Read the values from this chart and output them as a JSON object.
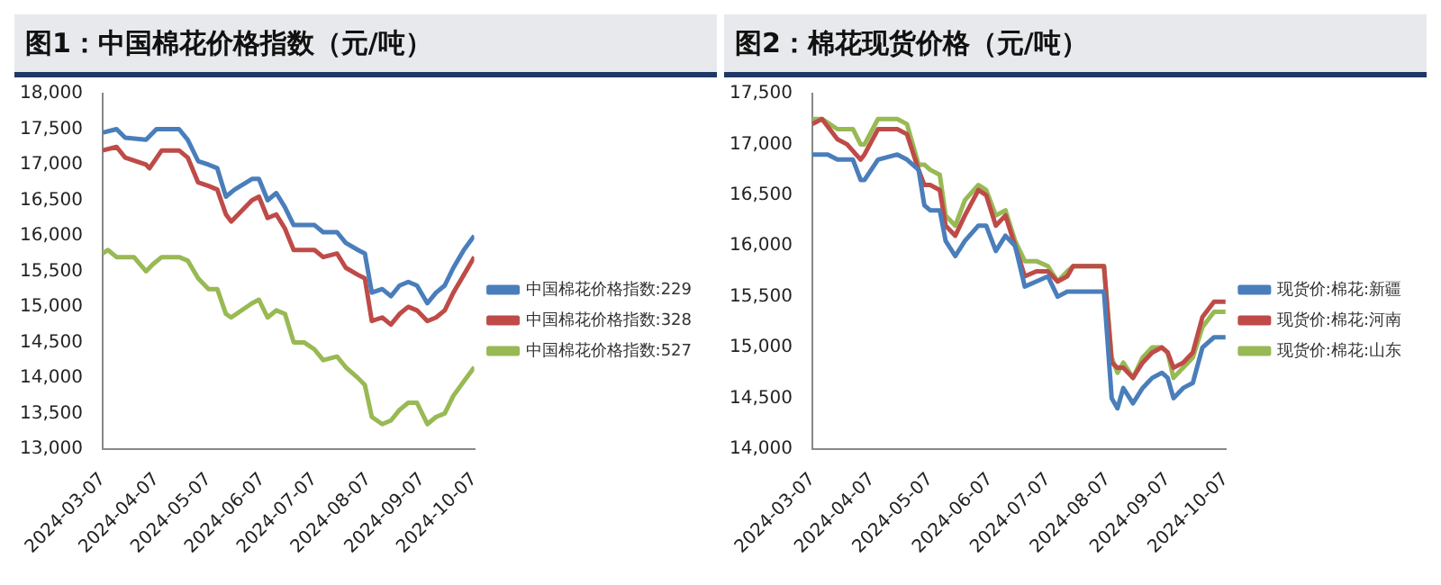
{
  "chart_data": [
    {
      "type": "line",
      "title": "图1：中国棉花价格指数（元/吨）",
      "legend": "right",
      "marker": "none",
      "xlim": [
        "2024-03-07",
        "2024-10-07"
      ],
      "xticks": [
        {
          "value": "2024-03-07",
          "label": "2024-03-07"
        },
        {
          "value": "2024-04-07",
          "label": "2024-04-07"
        },
        {
          "value": "2024-05-07",
          "label": "2024-05-07"
        },
        {
          "value": "2024-06-07",
          "label": "2024-06-07"
        },
        {
          "value": "2024-07-07",
          "label": "2024-07-07"
        },
        {
          "value": "2024-08-07",
          "label": "2024-08-07"
        },
        {
          "value": "2024-09-07",
          "label": "2024-09-07"
        },
        {
          "value": "2024-10-07",
          "label": "2024-10-07"
        }
      ],
      "ylim": [
        13000,
        18000
      ],
      "yticks": [
        {
          "value": 13000,
          "label": "13,000"
        },
        {
          "value": 13500,
          "label": "13,500"
        },
        {
          "value": 14000,
          "label": "14,000"
        },
        {
          "value": 14500,
          "label": "14,500"
        },
        {
          "value": 15000,
          "label": "15,000"
        },
        {
          "value": 15500,
          "label": "15,500"
        },
        {
          "value": 16000,
          "label": "16,000"
        },
        {
          "value": 16500,
          "label": "16,500"
        },
        {
          "value": 17000,
          "label": "17,000"
        },
        {
          "value": 17500,
          "label": "17,500"
        },
        {
          "value": 18000,
          "label": "18,000"
        }
      ],
      "series": [
        {
          "name": "中国棉花价格指数:229",
          "color": "#4a7ebb",
          "x": [
            "2024-03-07",
            "2024-03-15",
            "2024-03-20",
            "2024-04-01",
            "2024-04-07",
            "2024-04-20",
            "2024-04-25",
            "2024-05-01",
            "2024-05-07",
            "2024-05-12",
            "2024-05-17",
            "2024-05-22",
            "2024-06-01",
            "2024-06-05",
            "2024-06-10",
            "2024-06-15",
            "2024-06-20",
            "2024-06-25",
            "2024-07-01",
            "2024-07-07",
            "2024-07-12",
            "2024-07-20",
            "2024-07-25",
            "2024-08-01",
            "2024-08-05",
            "2024-08-09",
            "2024-08-15",
            "2024-08-20",
            "2024-08-25",
            "2024-08-30",
            "2024-09-04",
            "2024-09-10",
            "2024-09-15",
            "2024-09-20",
            "2024-09-25",
            "2024-10-01",
            "2024-10-07"
          ],
          "values": [
            17450,
            17500,
            17380,
            17350,
            17500,
            17500,
            17350,
            17050,
            17000,
            16950,
            16550,
            16650,
            16800,
            16800,
            16500,
            16600,
            16400,
            16150,
            16150,
            16150,
            16050,
            16050,
            15900,
            15800,
            15750,
            15200,
            15250,
            15150,
            15300,
            15350,
            15300,
            15050,
            15200,
            15300,
            15550,
            15800,
            16000
          ]
        },
        {
          "name": "中国棉花价格指数:328",
          "color": "#be4b48",
          "x": [
            "2024-03-07",
            "2024-03-15",
            "2024-03-20",
            "2024-04-01",
            "2024-04-03",
            "2024-04-10",
            "2024-04-20",
            "2024-04-25",
            "2024-05-01",
            "2024-05-07",
            "2024-05-12",
            "2024-05-17",
            "2024-05-20",
            "2024-06-01",
            "2024-06-05",
            "2024-06-10",
            "2024-06-15",
            "2024-06-20",
            "2024-06-25",
            "2024-07-01",
            "2024-07-07",
            "2024-07-12",
            "2024-07-20",
            "2024-07-25",
            "2024-08-01",
            "2024-08-05",
            "2024-08-09",
            "2024-08-15",
            "2024-08-20",
            "2024-08-25",
            "2024-08-30",
            "2024-09-04",
            "2024-09-10",
            "2024-09-15",
            "2024-09-20",
            "2024-09-25",
            "2024-10-01",
            "2024-10-07"
          ],
          "values": [
            17200,
            17250,
            17100,
            17000,
            16950,
            17200,
            17200,
            17100,
            16750,
            16700,
            16650,
            16300,
            16200,
            16500,
            16550,
            16250,
            16300,
            16100,
            15800,
            15800,
            15800,
            15700,
            15750,
            15550,
            15450,
            15400,
            14800,
            14850,
            14750,
            14900,
            15000,
            14950,
            14800,
            14850,
            14950,
            15200,
            15450,
            15700
          ]
        },
        {
          "name": "中国棉花价格指数:527",
          "color": "#98b954",
          "x": [
            "2024-03-07",
            "2024-03-10",
            "2024-03-15",
            "2024-03-25",
            "2024-04-01",
            "2024-04-05",
            "2024-04-10",
            "2024-04-20",
            "2024-04-25",
            "2024-05-01",
            "2024-05-07",
            "2024-05-12",
            "2024-05-17",
            "2024-05-20",
            "2024-06-01",
            "2024-06-05",
            "2024-06-10",
            "2024-06-15",
            "2024-06-20",
            "2024-06-25",
            "2024-07-01",
            "2024-07-07",
            "2024-07-12",
            "2024-07-20",
            "2024-07-25",
            "2024-08-01",
            "2024-08-05",
            "2024-08-09",
            "2024-08-15",
            "2024-08-20",
            "2024-08-25",
            "2024-08-30",
            "2024-09-04",
            "2024-09-10",
            "2024-09-15",
            "2024-09-20",
            "2024-09-25",
            "2024-10-01",
            "2024-10-07"
          ],
          "values": [
            15750,
            15800,
            15700,
            15700,
            15500,
            15600,
            15700,
            15700,
            15650,
            15400,
            15250,
            15250,
            14900,
            14850,
            15050,
            15100,
            14850,
            14950,
            14900,
            14500,
            14500,
            14400,
            14250,
            14300,
            14150,
            14000,
            13900,
            13450,
            13350,
            13400,
            13550,
            13650,
            13650,
            13350,
            13450,
            13500,
            13750,
            13950,
            14150
          ]
        }
      ]
    },
    {
      "type": "line",
      "title": "图2：棉花现货价格（元/吨）",
      "legend": "right",
      "marker": "none",
      "xlim": [
        "2024-03-07",
        "2024-10-07"
      ],
      "xticks": [
        {
          "value": "2024-03-07",
          "label": "2024-03-07"
        },
        {
          "value": "2024-04-07",
          "label": "2024-04-07"
        },
        {
          "value": "2024-05-07",
          "label": "2024-05-07"
        },
        {
          "value": "2024-06-07",
          "label": "2024-06-07"
        },
        {
          "value": "2024-07-07",
          "label": "2024-07-07"
        },
        {
          "value": "2024-08-07",
          "label": "2024-08-07"
        },
        {
          "value": "2024-09-07",
          "label": "2024-09-07"
        },
        {
          "value": "2024-10-07",
          "label": "2024-10-07"
        }
      ],
      "ylim": [
        14000,
        17500
      ],
      "yticks": [
        {
          "value": 14000,
          "label": "14,000"
        },
        {
          "value": 14500,
          "label": "14,500"
        },
        {
          "value": 15000,
          "label": "15,000"
        },
        {
          "value": 15500,
          "label": "15,500"
        },
        {
          "value": 16000,
          "label": "16,000"
        },
        {
          "value": 16500,
          "label": "16,500"
        },
        {
          "value": 17000,
          "label": "17,000"
        },
        {
          "value": 17500,
          "label": "17,500"
        }
      ],
      "series": [
        {
          "name": "现货价:棉花:新疆",
          "color": "#4a7ebb",
          "x": [
            "2024-03-07",
            "2024-03-15",
            "2024-03-20",
            "2024-03-28",
            "2024-04-01",
            "2024-04-03",
            "2024-04-10",
            "2024-04-20",
            "2024-04-25",
            "2024-05-01",
            "2024-05-04",
            "2024-05-07",
            "2024-05-12",
            "2024-05-15",
            "2024-05-20",
            "2024-05-25",
            "2024-06-01",
            "2024-06-05",
            "2024-06-10",
            "2024-06-15",
            "2024-06-20",
            "2024-06-25",
            "2024-07-01",
            "2024-07-07",
            "2024-07-12",
            "2024-07-17",
            "2024-07-25",
            "2024-08-05",
            "2024-08-09",
            "2024-08-12",
            "2024-08-15",
            "2024-08-20",
            "2024-08-25",
            "2024-08-30",
            "2024-09-04",
            "2024-09-07",
            "2024-09-10",
            "2024-09-15",
            "2024-09-20",
            "2024-09-25",
            "2024-10-01",
            "2024-10-07"
          ],
          "values": [
            16900,
            16900,
            16850,
            16850,
            16650,
            16650,
            16850,
            16900,
            16850,
            16750,
            16400,
            16350,
            16350,
            16050,
            15900,
            16050,
            16200,
            16200,
            15950,
            16100,
            16000,
            15600,
            15650,
            15700,
            15500,
            15550,
            15550,
            15550,
            14500,
            14400,
            14600,
            14450,
            14600,
            14700,
            14750,
            14700,
            14500,
            14600,
            14650,
            15000,
            15100,
            15100
          ]
        },
        {
          "name": "现货价:棉花:河南",
          "color": "#be4b48",
          "x": [
            "2024-03-07",
            "2024-03-12",
            "2024-03-20",
            "2024-03-25",
            "2024-04-01",
            "2024-04-03",
            "2024-04-10",
            "2024-04-20",
            "2024-04-25",
            "2024-05-01",
            "2024-05-04",
            "2024-05-07",
            "2024-05-12",
            "2024-05-15",
            "2024-05-20",
            "2024-05-25",
            "2024-06-01",
            "2024-06-05",
            "2024-06-10",
            "2024-06-15",
            "2024-06-20",
            "2024-06-25",
            "2024-07-01",
            "2024-07-07",
            "2024-07-12",
            "2024-07-17",
            "2024-07-20",
            "2024-08-05",
            "2024-08-09",
            "2024-08-12",
            "2024-08-15",
            "2024-08-20",
            "2024-08-25",
            "2024-08-30",
            "2024-09-04",
            "2024-09-07",
            "2024-09-10",
            "2024-09-15",
            "2024-09-20",
            "2024-09-25",
            "2024-10-01",
            "2024-10-07"
          ],
          "values": [
            17200,
            17250,
            17050,
            17000,
            16850,
            16900,
            17150,
            17150,
            17100,
            16750,
            16600,
            16600,
            16550,
            16200,
            16100,
            16300,
            16550,
            16500,
            16200,
            16300,
            16000,
            15700,
            15750,
            15750,
            15650,
            15700,
            15800,
            15800,
            14850,
            14800,
            14800,
            14700,
            14850,
            14950,
            15000,
            14950,
            14800,
            14850,
            14950,
            15300,
            15450,
            15450
          ]
        },
        {
          "name": "现货价:棉花:山东",
          "color": "#98b954",
          "x": [
            "2024-03-07",
            "2024-03-12",
            "2024-03-20",
            "2024-03-28",
            "2024-04-01",
            "2024-04-03",
            "2024-04-10",
            "2024-04-20",
            "2024-04-25",
            "2024-05-01",
            "2024-05-04",
            "2024-05-07",
            "2024-05-12",
            "2024-05-15",
            "2024-05-20",
            "2024-05-25",
            "2024-06-01",
            "2024-06-05",
            "2024-06-10",
            "2024-06-15",
            "2024-06-20",
            "2024-06-25",
            "2024-07-01",
            "2024-07-07",
            "2024-07-12",
            "2024-07-17",
            "2024-07-20",
            "2024-08-05",
            "2024-08-09",
            "2024-08-12",
            "2024-08-15",
            "2024-08-20",
            "2024-08-25",
            "2024-08-30",
            "2024-09-04",
            "2024-09-07",
            "2024-09-10",
            "2024-09-15",
            "2024-09-20",
            "2024-09-25",
            "2024-10-01",
            "2024-10-07"
          ],
          "values": [
            17250,
            17250,
            17150,
            17150,
            17000,
            17000,
            17250,
            17250,
            17200,
            16800,
            16800,
            16750,
            16700,
            16300,
            16200,
            16450,
            16600,
            16550,
            16300,
            16350,
            16050,
            15850,
            15850,
            15800,
            15650,
            15750,
            15800,
            15800,
            14900,
            14750,
            14850,
            14700,
            14900,
            15000,
            15000,
            14950,
            14700,
            14800,
            14900,
            15200,
            15350,
            15350
          ]
        }
      ]
    }
  ]
}
